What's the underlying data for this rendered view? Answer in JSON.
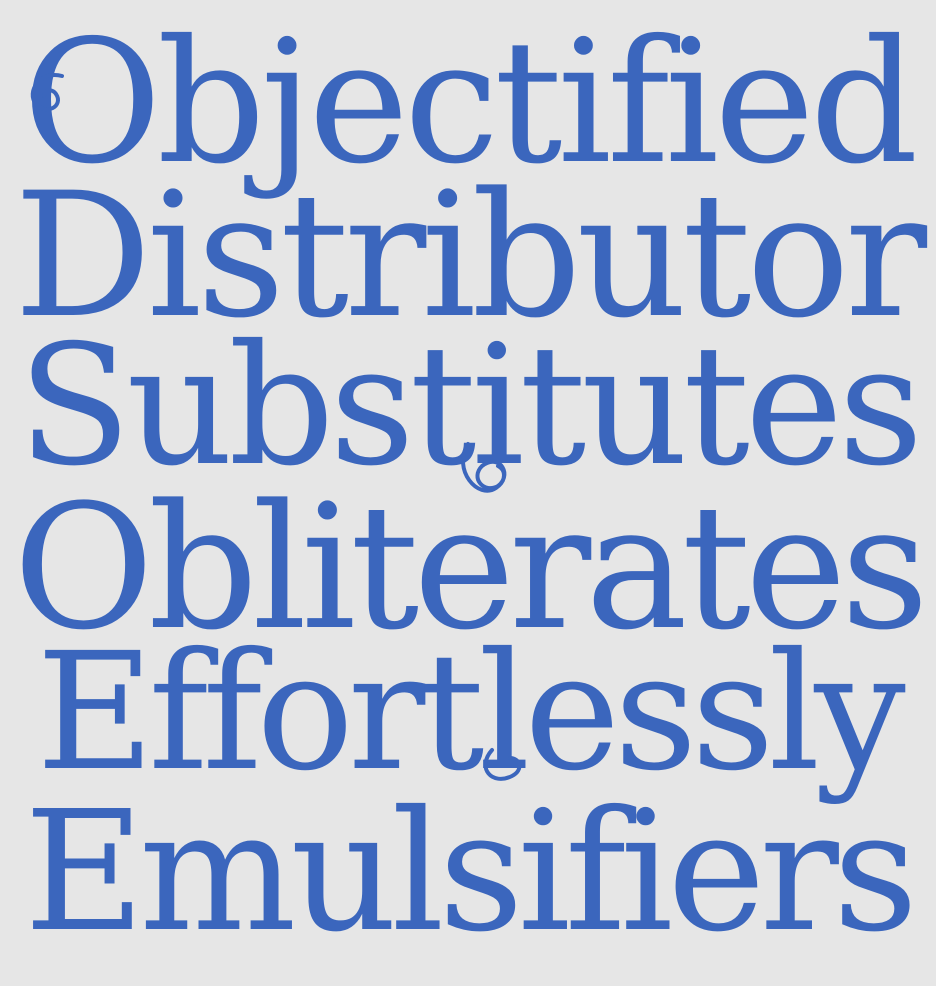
{
  "specimen": {
    "lines": [
      "Objectified",
      "Distributor",
      "Substitutes",
      "Obliterates",
      "Effortlessly",
      "Emulsifiers"
    ],
    "text_color": "#3b66bd",
    "background_color": "#e6e6e6"
  }
}
